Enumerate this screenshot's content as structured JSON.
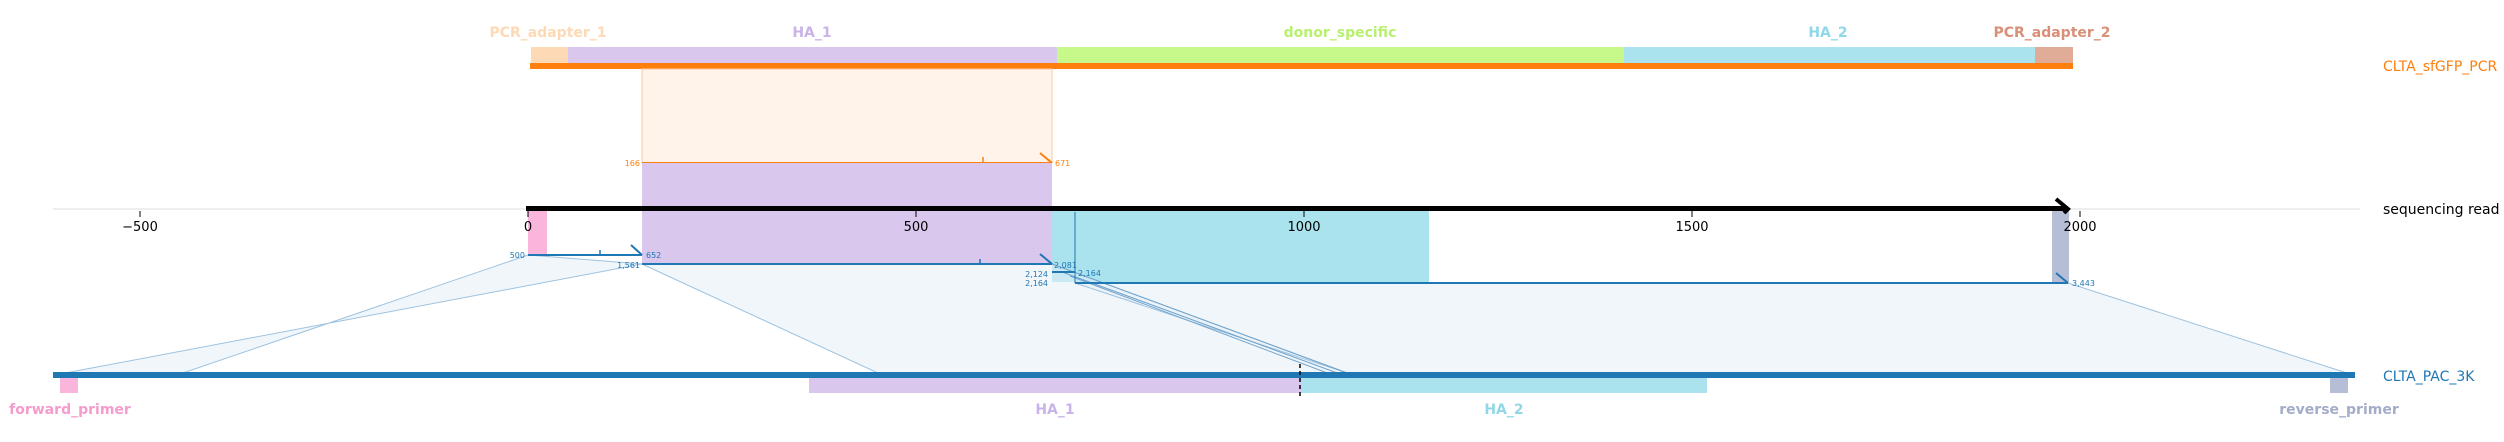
{
  "reference_track": {
    "name": "CLTA_sfGFP_PCR",
    "color": "#ff7f0e",
    "features": [
      {
        "label": "PCR_adapter_1",
        "start": 0,
        "end": 100,
        "color": "#fdd9b5"
      },
      {
        "label": "HA_1",
        "start": 100,
        "end": 680,
        "color": "#d9c7ed"
      },
      {
        "label": "donor_specific",
        "start": 680,
        "end": 1410,
        "color": "#c6f88a"
      },
      {
        "label": "HA_2",
        "start": 1410,
        "end": 1940,
        "color": "#aae3ed"
      },
      {
        "label": "PCR_adapter_2",
        "start": 1940,
        "end": 1990,
        "color": "#e0ac98"
      }
    ],
    "alignment": {
      "ref_start": "166",
      "ref_end": "671",
      "read_start": 146,
      "read_end": 672
    }
  },
  "read_track": {
    "name": "sequencing read",
    "length": 2000,
    "axis_ticks": [
      "−500",
      "0",
      "500",
      "1000",
      "1500",
      "2000"
    ],
    "axis_values": [
      -500,
      0,
      500,
      1000,
      1500,
      2000
    ],
    "highlights": [
      {
        "start": 0,
        "end": 24,
        "color": "#f9b5dc"
      },
      {
        "start": 146,
        "end": 672,
        "color": "#d9c7ed"
      },
      {
        "start": 672,
        "end": 1160,
        "color": "#aae3ed"
      },
      {
        "start": 1968,
        "end": 1990,
        "color": "#b6bed6"
      }
    ]
  },
  "target_track": {
    "name": "CLTA_PAC_3K",
    "color": "#1f77b4",
    "features": [
      {
        "label": "forward_primer",
        "color": "#f9b5dc"
      },
      {
        "label": "HA_1",
        "color": "#d9c7ed"
      },
      {
        "label": "HA_2",
        "color": "#aae3ed"
      },
      {
        "label": "reverse_primer",
        "color": "#b6bed6"
      }
    ],
    "alignment_labels": [
      "500",
      "1,561",
      "652",
      "2,124",
      "2,081",
      "2,164",
      "2,164",
      "3,443"
    ]
  }
}
